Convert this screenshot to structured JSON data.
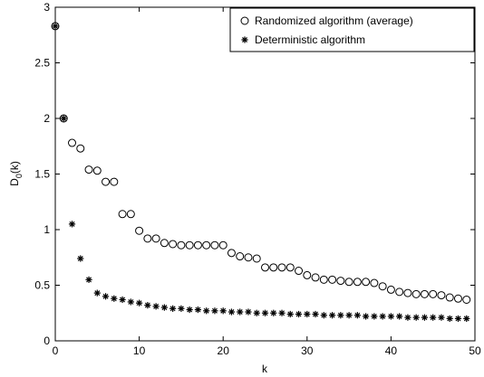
{
  "chart_data": {
    "type": "scatter",
    "title": "",
    "xlabel": "k",
    "ylabel": "D0(k)",
    "ylabel_main": "D",
    "ylabel_sub": "0",
    "ylabel_rest": "(k)",
    "xlim": [
      0,
      50
    ],
    "ylim": [
      0,
      3
    ],
    "xticks": [
      0,
      10,
      20,
      30,
      40,
      50
    ],
    "yticks": [
      0,
      0.5,
      1,
      1.5,
      2,
      2.5,
      3
    ],
    "xtick_labels": [
      "0",
      "10",
      "20",
      "30",
      "40",
      "50"
    ],
    "ytick_labels": [
      "0",
      "0.5",
      "1",
      "1.5",
      "2",
      "2.5",
      "3"
    ],
    "grid": false,
    "legend_position": "top-right",
    "series": [
      {
        "name": "Randomized algorithm (average)",
        "marker": "circle",
        "x": [
          0,
          1,
          2,
          3,
          4,
          5,
          6,
          7,
          8,
          9,
          10,
          11,
          12,
          13,
          14,
          15,
          16,
          17,
          18,
          19,
          20,
          21,
          22,
          23,
          24,
          25,
          26,
          27,
          28,
          29,
          30,
          31,
          32,
          33,
          34,
          35,
          36,
          37,
          38,
          39,
          40,
          41,
          42,
          43,
          44,
          45,
          46,
          47,
          48,
          49
        ],
        "y": [
          2.83,
          2.0,
          1.78,
          1.73,
          1.54,
          1.53,
          1.43,
          1.43,
          1.14,
          1.14,
          0.99,
          0.92,
          0.92,
          0.88,
          0.87,
          0.86,
          0.86,
          0.86,
          0.86,
          0.86,
          0.86,
          0.79,
          0.76,
          0.75,
          0.74,
          0.66,
          0.66,
          0.66,
          0.66,
          0.63,
          0.59,
          0.57,
          0.55,
          0.55,
          0.54,
          0.53,
          0.53,
          0.53,
          0.52,
          0.49,
          0.46,
          0.44,
          0.43,
          0.42,
          0.42,
          0.42,
          0.41,
          0.39,
          0.38,
          0.37
        ]
      },
      {
        "name": "Deterministic algorithm",
        "marker": "star",
        "x": [
          0,
          1,
          2,
          3,
          4,
          5,
          6,
          7,
          8,
          9,
          10,
          11,
          12,
          13,
          14,
          15,
          16,
          17,
          18,
          19,
          20,
          21,
          22,
          23,
          24,
          25,
          26,
          27,
          28,
          29,
          30,
          31,
          32,
          33,
          34,
          35,
          36,
          37,
          38,
          39,
          40,
          41,
          42,
          43,
          44,
          45,
          46,
          47,
          48,
          49
        ],
        "y": [
          2.83,
          2.0,
          1.05,
          0.74,
          0.55,
          0.43,
          0.4,
          0.38,
          0.37,
          0.35,
          0.34,
          0.32,
          0.31,
          0.3,
          0.29,
          0.29,
          0.28,
          0.28,
          0.27,
          0.27,
          0.27,
          0.26,
          0.26,
          0.26,
          0.25,
          0.25,
          0.25,
          0.25,
          0.24,
          0.24,
          0.24,
          0.24,
          0.23,
          0.23,
          0.23,
          0.23,
          0.23,
          0.22,
          0.22,
          0.22,
          0.22,
          0.22,
          0.21,
          0.21,
          0.21,
          0.21,
          0.21,
          0.2,
          0.2,
          0.2
        ]
      }
    ]
  }
}
